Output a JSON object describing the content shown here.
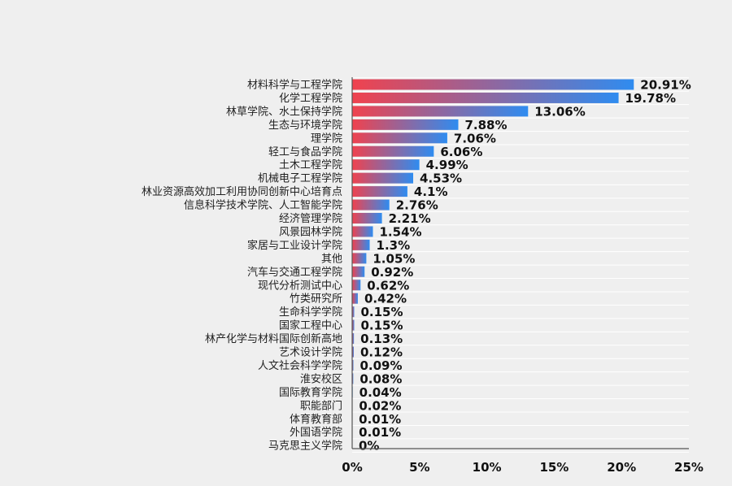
{
  "chart_data": {
    "type": "bar",
    "orientation": "horizontal",
    "categories": [
      "材料科学与工程学院",
      "化学工程学院",
      "林草学院、水土保持学院",
      "生态与环境学院",
      "理学院",
      "轻工与食品学院",
      "土木工程学院",
      "机械电子工程学院",
      "林业资源高效加工利用协同创新中心培育点",
      "信息科学技术学院、人工智能学院",
      "经济管理学院",
      "风景园林学院",
      "家居与工业设计学院",
      "其他",
      "汽车与交通工程学院",
      "现代分析测试中心",
      "竹类研究所",
      "生命科学学院",
      "国家工程中心",
      "林产化学与材料国际创新高地",
      "艺术设计学院",
      "人文社会科学学院",
      "淮安校区",
      "国际教育学院",
      "职能部门",
      "体育教育部",
      "外国语学院",
      "马克思主义学院"
    ],
    "values": [
      20.91,
      19.78,
      13.06,
      7.88,
      7.06,
      6.06,
      4.99,
      4.53,
      4.1,
      2.76,
      2.21,
      1.54,
      1.3,
      1.05,
      0.92,
      0.62,
      0.42,
      0.15,
      0.15,
      0.13,
      0.12,
      0.09,
      0.08,
      0.04,
      0.02,
      0.01,
      0.01,
      0
    ],
    "value_labels": [
      "20.91%",
      "19.78%",
      "13.06%",
      "7.88%",
      "7.06%",
      "6.06%",
      "4.99%",
      "4.53%",
      "4.1%",
      "2.76%",
      "2.21%",
      "1.54%",
      "1.3%",
      "1.05%",
      "0.92%",
      "0.62%",
      "0.42%",
      "0.15%",
      "0.15%",
      "0.13%",
      "0.12%",
      "0.09%",
      "0.08%",
      "0.04%",
      "0.02%",
      "0.01%",
      "0.01%",
      "0%"
    ],
    "x_ticks": [
      0,
      5,
      10,
      15,
      20,
      25
    ],
    "x_tick_labels": [
      "0%",
      "5%",
      "10%",
      "15%",
      "20%",
      "25%"
    ],
    "xlim": [
      0,
      25
    ],
    "grid": true,
    "colors": {
      "gradient_start": "#f0424e",
      "gradient_end": "#2f8cf0",
      "background": "#efefef",
      "gridline": "#ffffff"
    }
  }
}
